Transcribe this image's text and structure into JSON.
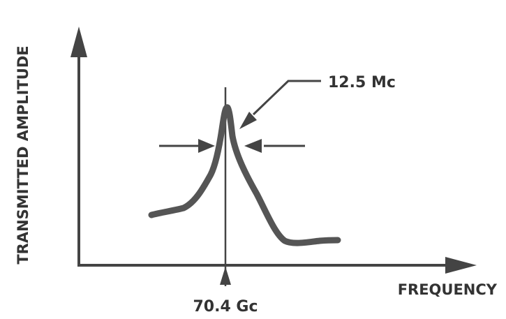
{
  "chart_data": {
    "type": "line",
    "title": "",
    "xlabel": "FREQUENCY",
    "ylabel": "TRANSMITTED AMPLITUDE",
    "center_frequency_label": "70.4 Gc",
    "bandwidth_label": "12.5 Mc",
    "grid": false,
    "legend": "none",
    "colors": {
      "axis": "#444444",
      "curve": "#555555",
      "text": "#333333"
    }
  }
}
